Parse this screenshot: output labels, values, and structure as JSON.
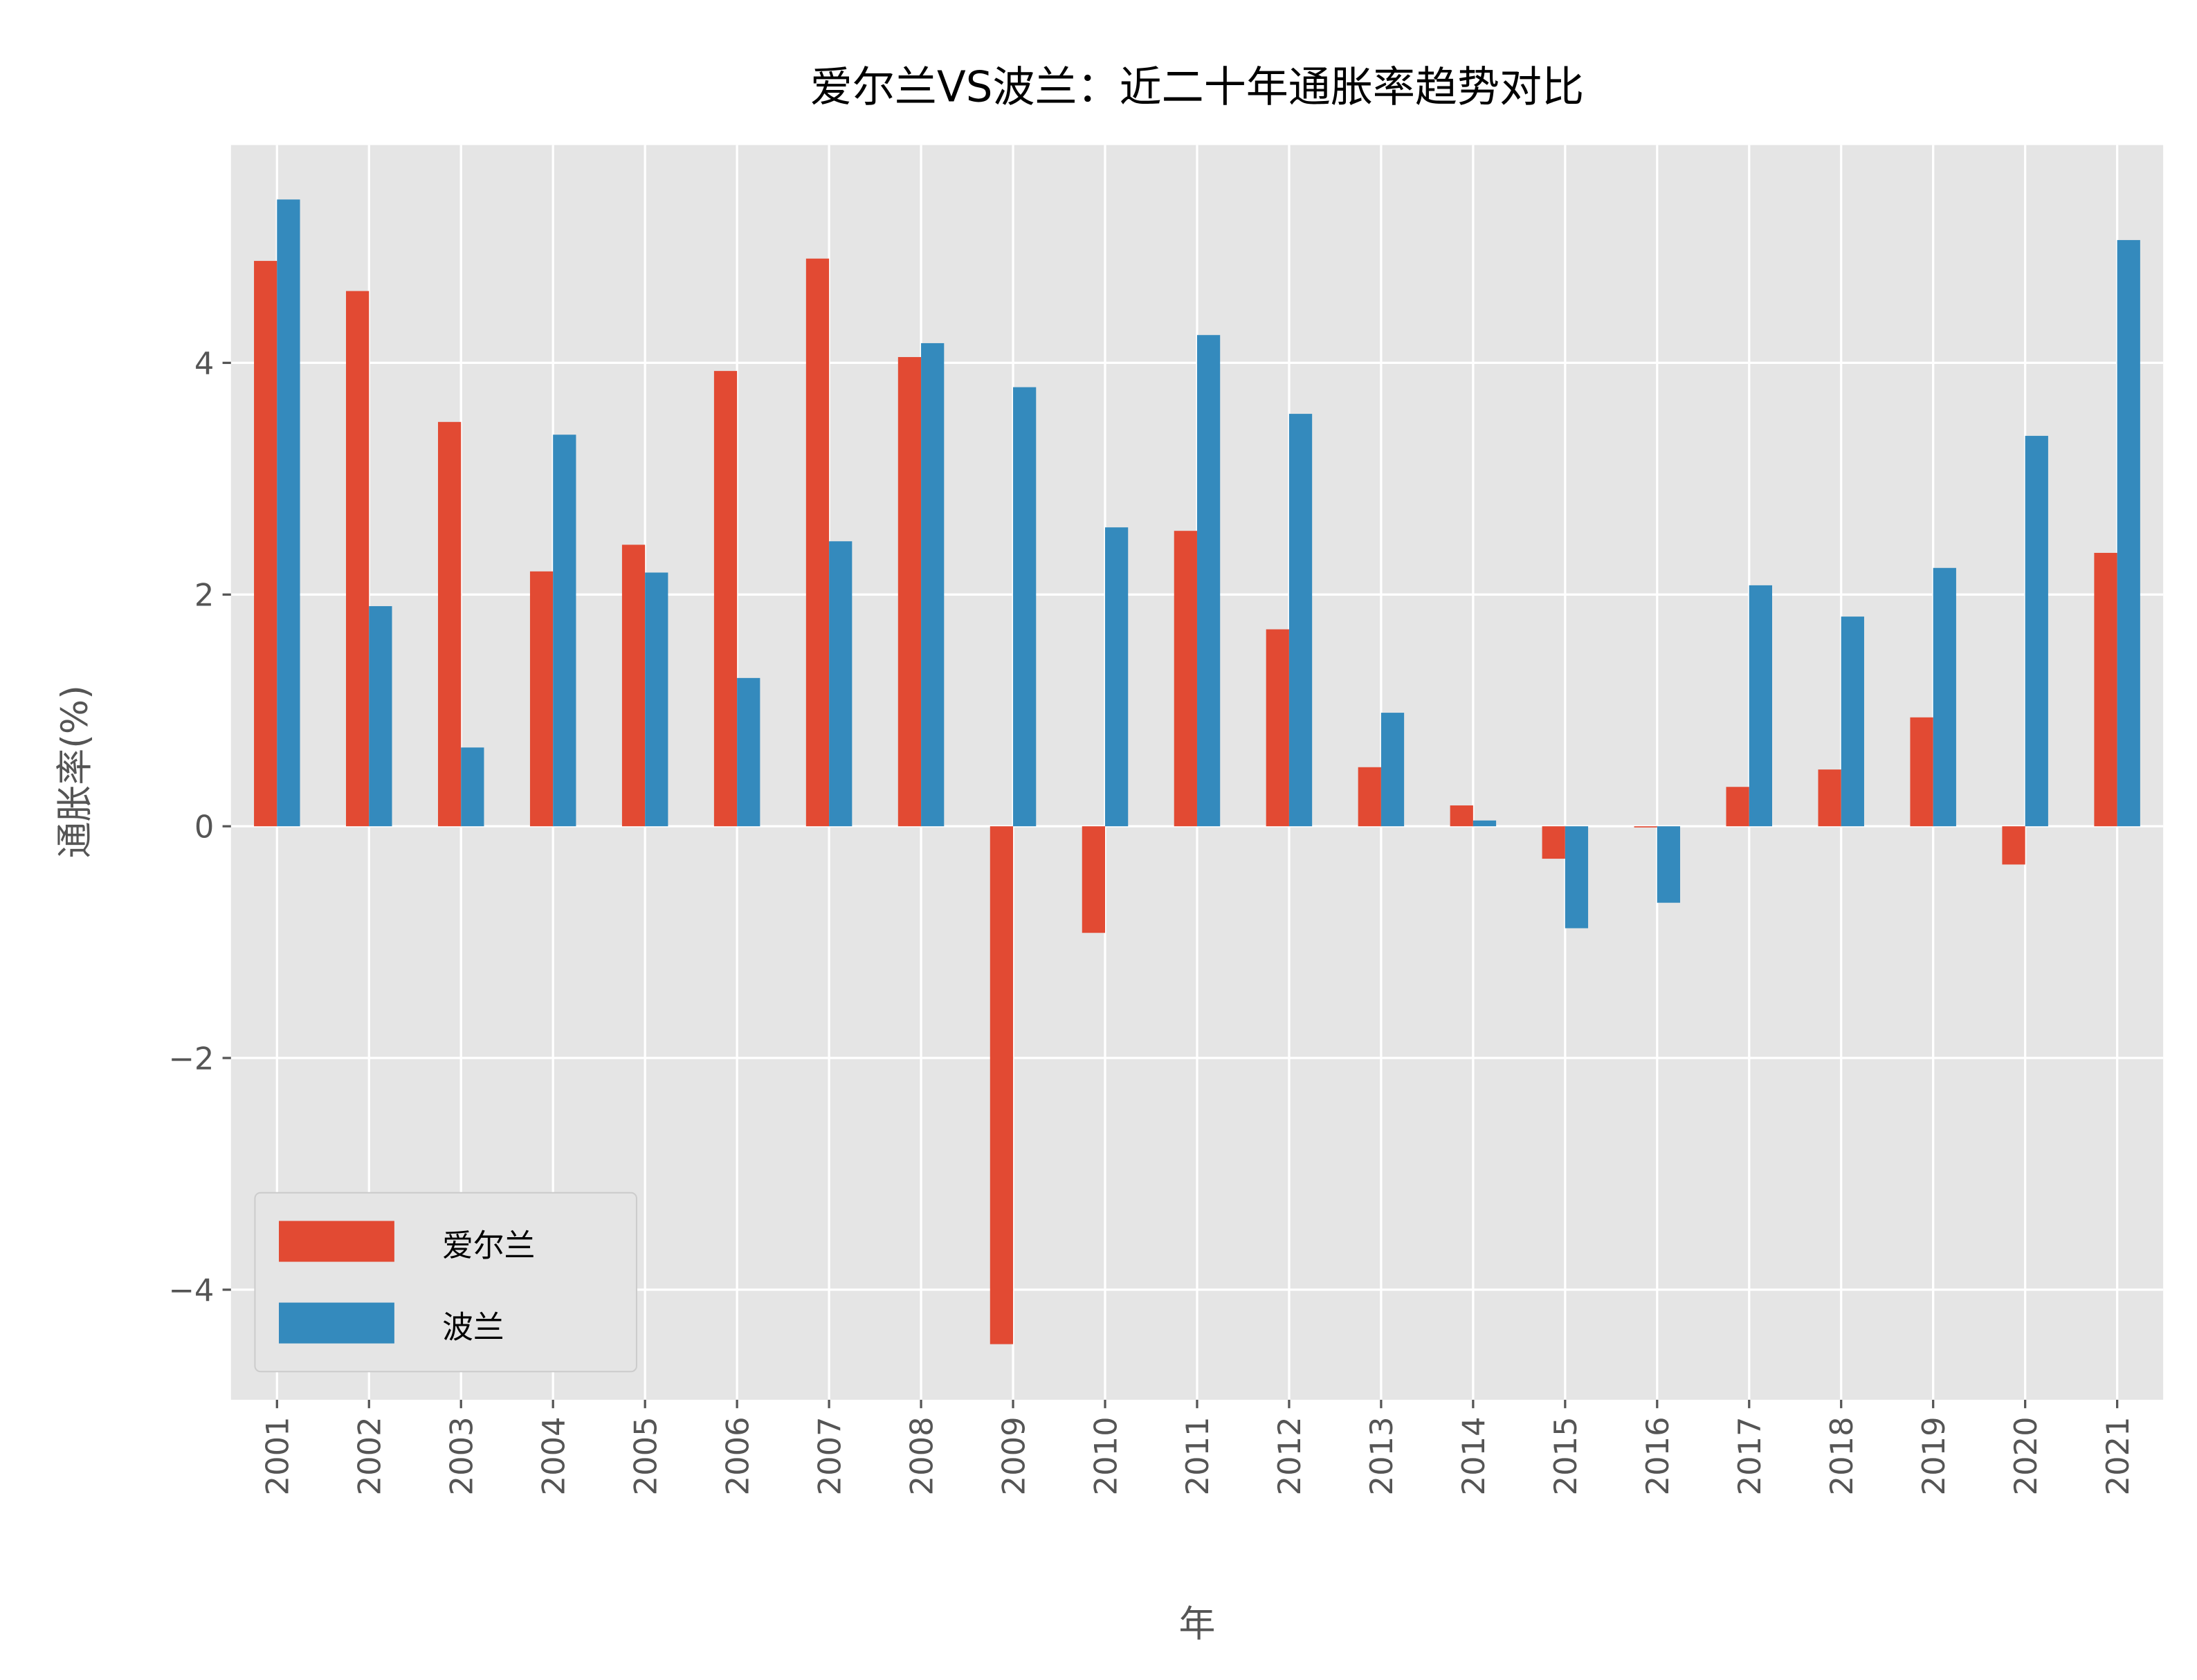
{
  "chart_data": {
    "type": "bar",
    "title": "爱尔兰VS波兰：近二十年通胀率趋势对比",
    "xlabel": "年",
    "ylabel": "通胀率(%)",
    "categories": [
      "2001",
      "2002",
      "2003",
      "2004",
      "2005",
      "2006",
      "2007",
      "2008",
      "2009",
      "2010",
      "2011",
      "2012",
      "2013",
      "2014",
      "2015",
      "2016",
      "2017",
      "2018",
      "2019",
      "2020",
      "2021"
    ],
    "series": [
      {
        "name": "爱尔兰",
        "color": "#E24A33",
        "values": [
          4.88,
          4.62,
          3.49,
          2.2,
          2.43,
          3.93,
          4.9,
          4.05,
          -4.47,
          -0.92,
          2.55,
          1.7,
          0.51,
          0.18,
          -0.28,
          -0.01,
          0.34,
          0.49,
          0.94,
          -0.33,
          2.36
        ]
      },
      {
        "name": "波兰",
        "color": "#348ABD",
        "values": [
          5.41,
          1.9,
          0.68,
          3.38,
          2.19,
          1.28,
          2.46,
          4.17,
          3.79,
          2.58,
          4.24,
          3.56,
          0.98,
          0.05,
          -0.88,
          -0.66,
          2.08,
          1.81,
          2.23,
          3.37,
          5.06
        ]
      }
    ],
    "yticks": [
      -4,
      -2,
      0,
      2,
      4
    ],
    "ytick_labels": [
      "−4",
      "−2",
      "0",
      "2",
      "4"
    ],
    "ylim": [
      -4.95,
      5.88
    ],
    "grid": true,
    "legend_position": "lower-left",
    "background": "#E5E5E5"
  }
}
